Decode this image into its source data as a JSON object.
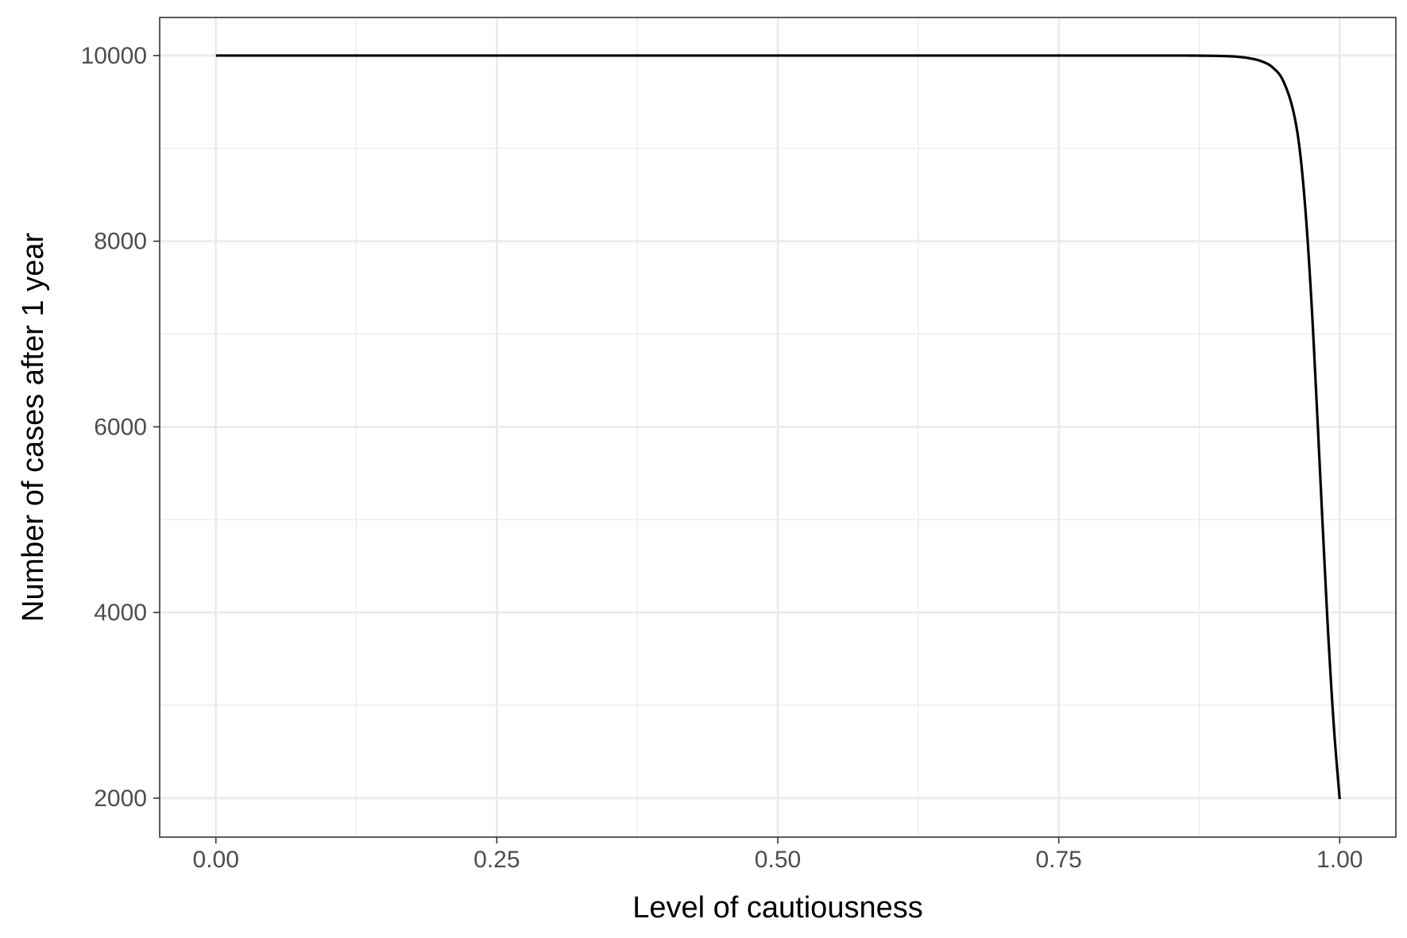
{
  "chart_data": {
    "type": "line",
    "title": "",
    "xlabel": "Level of cautiousness",
    "ylabel": "Number of cases after 1 year",
    "xlim": [
      -0.05,
      1.05
    ],
    "ylim": [
      1580,
      10410
    ],
    "x_ticks": [
      0.0,
      0.25,
      0.5,
      0.75,
      1.0
    ],
    "x_tick_labels": [
      "0.00",
      "0.25",
      "0.50",
      "0.75",
      "1.00"
    ],
    "x_minor_ticks": [
      0.125,
      0.375,
      0.625,
      0.875
    ],
    "y_ticks": [
      2000,
      4000,
      6000,
      8000,
      10000
    ],
    "y_tick_labels": [
      "2000",
      "4000",
      "6000",
      "8000",
      "10000"
    ],
    "y_minor_ticks": [
      3000,
      5000,
      7000,
      9000
    ],
    "grid": true,
    "legend": "none",
    "colors": {
      "line": "#000000",
      "grid": "#ebebeb",
      "panel_border": "#333333",
      "tick_label": "#4d4d4d"
    },
    "series": [
      {
        "x": [
          0.0,
          0.1,
          0.2,
          0.3,
          0.4,
          0.5,
          0.6,
          0.7,
          0.8,
          0.85,
          0.88,
          0.9,
          0.91,
          0.92,
          0.93,
          0.94,
          0.95,
          0.96,
          0.965,
          0.97,
          0.975,
          0.98,
          0.985,
          0.99,
          0.995,
          1.0
        ],
        "values": [
          10000,
          10000,
          10000,
          10000,
          10000,
          10000,
          10000,
          10000,
          10000,
          10000,
          9998,
          9993,
          9986,
          9970,
          9940,
          9875,
          9720,
          9330,
          8930,
          8260,
          7320,
          6140,
          4900,
          3720,
          2740,
          1990
        ]
      }
    ]
  }
}
